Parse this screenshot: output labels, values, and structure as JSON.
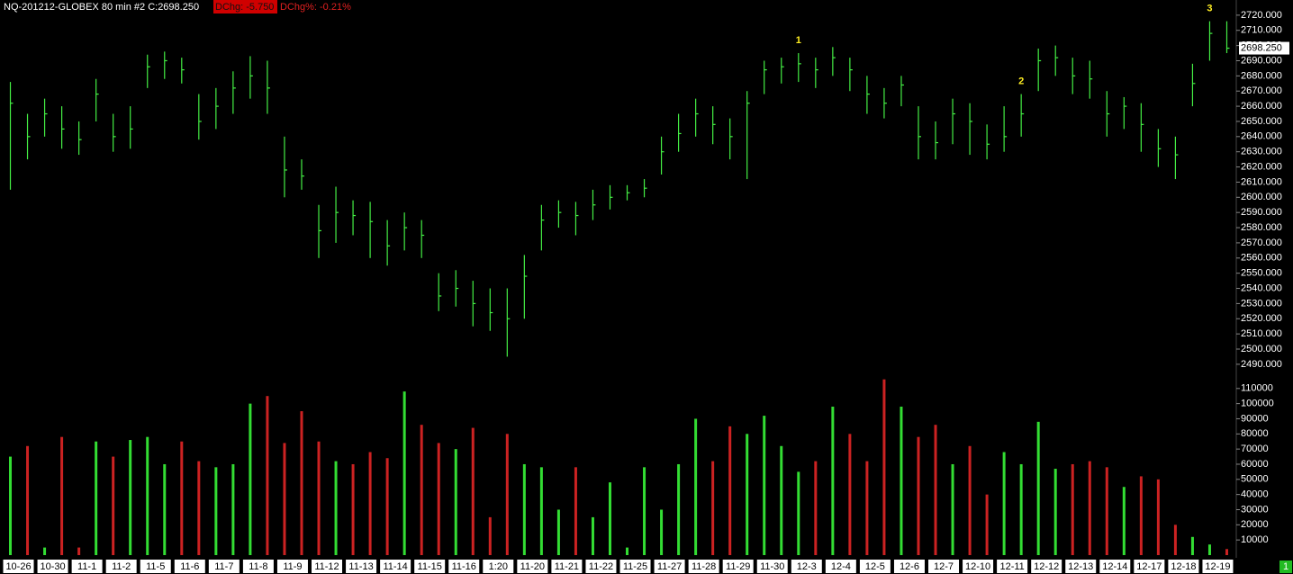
{
  "header": {
    "symbol": "NQ-201212-GLOBEX  80 min  #2 C:2698.250",
    "dchg": "DChg: -5.750",
    "dchg_pct": "DChg%: -0.21%"
  },
  "page_indicator": "1",
  "chart_data": [
    {
      "type": "ohlc",
      "color": "#44ee44",
      "annotations": [
        "1",
        "2",
        "3"
      ],
      "annotation_color": "#ffee22",
      "last_price_label": "2698.250",
      "high": [
        2676,
        2655,
        2665,
        2660,
        2650,
        2678,
        2655,
        2660,
        2694,
        2696,
        2692,
        2668,
        2672,
        2683,
        2693,
        2690,
        2640,
        2625,
        2595,
        2607,
        2598,
        2597,
        2585,
        2590,
        2585,
        2550,
        2552,
        2545,
        2540,
        2540,
        2562,
        2595,
        2598,
        2597,
        2605,
        2608,
        2608,
        2612,
        2640,
        2655,
        2665,
        2660,
        2652,
        2670,
        2690,
        2692,
        2695,
        2692,
        2699,
        2692,
        2680,
        2672,
        2680,
        2660,
        2650,
        2665,
        2662,
        2648,
        2660,
        2668,
        2698,
        2700,
        2692,
        2690,
        2670,
        2666,
        2662,
        2645,
        2640,
        2688,
        2716,
        2716
      ],
      "low": [
        2605,
        2625,
        2640,
        2632,
        2628,
        2650,
        2630,
        2632,
        2672,
        2678,
        2675,
        2638,
        2645,
        2655,
        2665,
        2655,
        2600,
        2605,
        2560,
        2570,
        2575,
        2560,
        2555,
        2565,
        2560,
        2525,
        2528,
        2515,
        2512,
        2495,
        2520,
        2565,
        2580,
        2575,
        2585,
        2592,
        2598,
        2600,
        2615,
        2630,
        2640,
        2635,
        2625,
        2612,
        2668,
        2675,
        2676,
        2672,
        2680,
        2670,
        2655,
        2652,
        2660,
        2625,
        2625,
        2635,
        2628,
        2625,
        2630,
        2640,
        2670,
        2680,
        2668,
        2665,
        2640,
        2645,
        2630,
        2620,
        2612,
        2660,
        2690,
        2695
      ],
      "close": [
        2662,
        2640,
        2655,
        2645,
        2638,
        2668,
        2640,
        2645,
        2686,
        2690,
        2684,
        2650,
        2660,
        2672,
        2680,
        2672,
        2618,
        2614,
        2578,
        2590,
        2588,
        2584,
        2568,
        2580,
        2575,
        2535,
        2540,
        2530,
        2524,
        2520,
        2548,
        2585,
        2590,
        2588,
        2595,
        2600,
        2603,
        2606,
        2630,
        2642,
        2655,
        2648,
        2640,
        2662,
        2684,
        2686,
        2688,
        2684,
        2692,
        2684,
        2668,
        2662,
        2674,
        2640,
        2636,
        2655,
        2650,
        2635,
        2640,
        2655,
        2690,
        2692,
        2680,
        2678,
        2655,
        2660,
        2648,
        2632,
        2628,
        2675,
        2708,
        2698.25
      ],
      "ylim": [
        2484,
        2730
      ],
      "yticks": [
        {
          "value": 2490,
          "label": "2490.000"
        },
        {
          "value": 2500,
          "label": "2500.000"
        },
        {
          "value": 2510,
          "label": "2510.000"
        },
        {
          "value": 2520,
          "label": "2520.000"
        },
        {
          "value": 2530,
          "label": "2530.000"
        },
        {
          "value": 2540,
          "label": "2540.000"
        },
        {
          "value": 2550,
          "label": "2550.000"
        },
        {
          "value": 2560,
          "label": "2560.000"
        },
        {
          "value": 2570,
          "label": "2570.000"
        },
        {
          "value": 2580,
          "label": "2580.000"
        },
        {
          "value": 2590,
          "label": "2590.000"
        },
        {
          "value": 2600,
          "label": "2600.000"
        },
        {
          "value": 2610,
          "label": "2610.000"
        },
        {
          "value": 2620,
          "label": "2620.000"
        },
        {
          "value": 2630,
          "label": "2630.000"
        },
        {
          "value": 2640,
          "label": "2640.000"
        },
        {
          "value": 2650,
          "label": "2650.000"
        },
        {
          "value": 2660,
          "label": "2660.000"
        },
        {
          "value": 2670,
          "label": "2670.000"
        },
        {
          "value": 2680,
          "label": "2680.000"
        },
        {
          "value": 2690,
          "label": "2690.000"
        },
        {
          "value": 2700,
          "label": "2700.000"
        },
        {
          "value": 2710,
          "label": "2710.000"
        },
        {
          "value": 2720,
          "label": "2720.000"
        }
      ]
    },
    {
      "type": "bar",
      "up_color": "#33dd33",
      "down_color": "#cc2222",
      "categories": [
        "10-26",
        null,
        "10-30",
        null,
        "11-1",
        null,
        "11-2",
        null,
        "11-5",
        null,
        "11-6",
        null,
        "11-7",
        null,
        "11-8",
        null,
        "11-9",
        null,
        "11-12",
        null,
        "11-13",
        null,
        "11-14",
        null,
        "11-15",
        null,
        "11-16",
        null,
        "1:20",
        null,
        "11-20",
        null,
        "11-21",
        null,
        "11-22",
        null,
        "11-25",
        null,
        "11-27",
        null,
        "11-28",
        null,
        "11-29",
        null,
        "11-30",
        null,
        "12-3",
        null,
        "12-4",
        null,
        "12-5",
        null,
        "12-6",
        null,
        "12-7",
        null,
        "12-10",
        null,
        "12-11",
        null,
        "12-12",
        null,
        "12-13",
        null,
        "12-14",
        null,
        "12-17",
        null,
        "12-18",
        null,
        "12-19",
        null
      ],
      "values": [
        65000,
        72000,
        5000,
        78000,
        5000,
        75000,
        65000,
        76000,
        78000,
        60000,
        75000,
        62000,
        58000,
        60000,
        100000,
        105000,
        74000,
        95000,
        75000,
        62000,
        60000,
        68000,
        64000,
        108000,
        86000,
        74000,
        70000,
        84000,
        25000,
        80000,
        60000,
        58000,
        30000,
        58000,
        25000,
        48000,
        5000,
        58000,
        30000,
        60000,
        90000,
        62000,
        85000,
        80000,
        92000,
        72000,
        55000,
        62000,
        98000,
        80000,
        62000,
        116000,
        98000,
        78000,
        86000,
        60000,
        72000,
        40000,
        68000,
        60000,
        88000,
        57000,
        60000,
        62000,
        58000,
        45000,
        52000,
        50000,
        20000,
        12000,
        7000,
        4000
      ],
      "ylim": [
        0,
        117000
      ],
      "yticks": [
        10000,
        20000,
        30000,
        40000,
        50000,
        60000,
        70000,
        80000,
        90000,
        100000,
        110000
      ]
    }
  ]
}
